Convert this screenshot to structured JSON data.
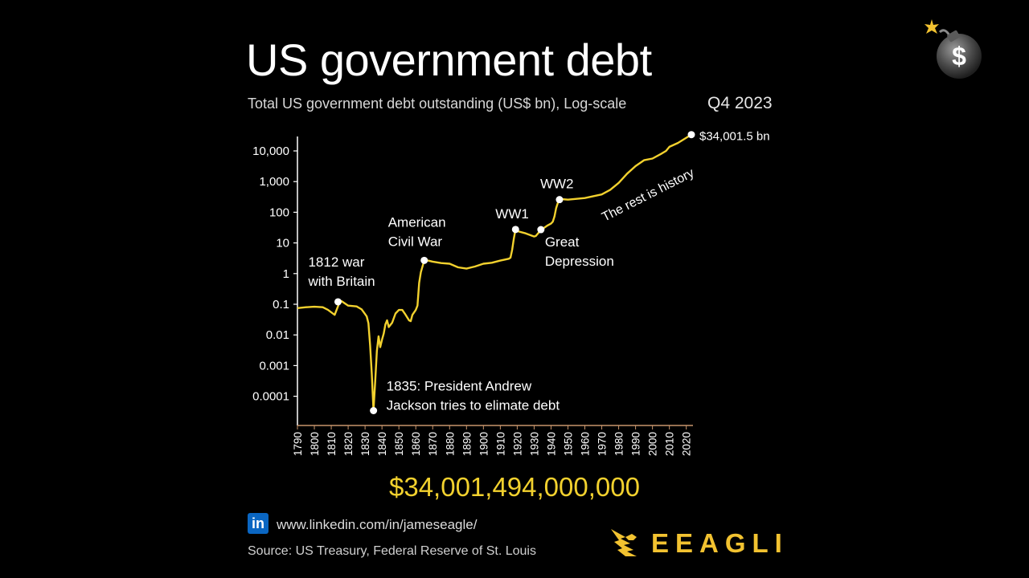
{
  "header": {
    "title": "US government debt",
    "subtitle": "Total US government debt outstanding (US$ bn), Log-scale",
    "period": "Q4 2023"
  },
  "total_display": "$34,001,494,000,000",
  "footer": {
    "linkedin_icon": "linkedin-icon",
    "linkedin_glyph": "in",
    "url": "www.linkedin.com/in/jameseagle/",
    "source": "Source: US Treasury, Federal Reserve of St. Louis",
    "brand": "EEAGLI"
  },
  "colors": {
    "background": "#000000",
    "line": "#f2d12e",
    "highlight_text": "#f2d12e",
    "brand": "#f2c230",
    "axis": "#ffffff",
    "x_axis": "#c8956c"
  },
  "chart_data": {
    "type": "line",
    "title": "US government debt",
    "subtitle": "Total US government debt outstanding (US$ bn), Log-scale",
    "xlabel": "",
    "ylabel": "",
    "y_scale": "log",
    "ylim": [
      0.0001,
      34001.5
    ],
    "xlim": [
      1790,
      2023
    ],
    "grid": false,
    "y_ticks": [
      {
        "value": 10000,
        "label": "10,000"
      },
      {
        "value": 1000,
        "label": "1,000"
      },
      {
        "value": 100,
        "label": "100"
      },
      {
        "value": 10,
        "label": "10"
      },
      {
        "value": 1,
        "label": "1"
      },
      {
        "value": 0.1,
        "label": "0.1"
      },
      {
        "value": 0.01,
        "label": "0.01"
      },
      {
        "value": 0.001,
        "label": "0.001"
      },
      {
        "value": 0.0001,
        "label": "0.0001"
      }
    ],
    "x_ticks": [
      "1790",
      "1800",
      "1810",
      "1820",
      "1830",
      "1840",
      "1850",
      "1860",
      "1870",
      "1880",
      "1890",
      "1900",
      "1910",
      "1920",
      "1930",
      "1940",
      "1950",
      "1960",
      "1970",
      "1980",
      "1990",
      "2000",
      "2010",
      "2020"
    ],
    "series": [
      {
        "x": [
          1790,
          1795,
          1800,
          1805,
          1808,
          1812,
          1815,
          1816,
          1820,
          1825,
          1828,
          1830,
          1831,
          1832,
          1833,
          1834,
          1835,
          1836,
          1837,
          1838,
          1839,
          1840,
          1841,
          1842,
          1843,
          1844,
          1846,
          1848,
          1850,
          1852,
          1854,
          1856,
          1857,
          1858,
          1860,
          1861,
          1862,
          1863,
          1865,
          1866,
          1868,
          1870,
          1875,
          1880,
          1885,
          1890,
          1893,
          1895,
          1900,
          1905,
          1910,
          1915,
          1916,
          1917,
          1918,
          1919,
          1920,
          1925,
          1930,
          1931,
          1932,
          1933,
          1934,
          1935,
          1938,
          1940,
          1941,
          1942,
          1943,
          1944,
          1945,
          1946,
          1950,
          1960,
          1970,
          1975,
          1980,
          1985,
          1990,
          1995,
          2000,
          2005,
          2008,
          2010,
          2015,
          2020,
          2023
        ],
        "values": [
          0.075,
          0.08,
          0.083,
          0.08,
          0.066,
          0.045,
          0.12,
          0.127,
          0.09,
          0.085,
          0.068,
          0.048,
          0.04,
          0.024,
          0.0045,
          0.00052,
          3.4e-05,
          0.0003,
          0.003,
          0.009,
          0.004,
          0.007,
          0.011,
          0.022,
          0.03,
          0.018,
          0.025,
          0.05,
          0.065,
          0.065,
          0.045,
          0.03,
          0.028,
          0.045,
          0.065,
          0.09,
          0.5,
          1.1,
          2.7,
          2.75,
          2.6,
          2.45,
          2.2,
          2.1,
          1.6,
          1.45,
          1.6,
          1.7,
          2.1,
          2.25,
          2.65,
          3.05,
          3.3,
          6.0,
          14.0,
          27.5,
          24.3,
          20.5,
          16.2,
          16.8,
          19.5,
          22.5,
          27.1,
          28.7,
          37.2,
          43.0,
          49.0,
          72.4,
          136.7,
          201.0,
          258.7,
          269.4,
          257.0,
          290.5,
          380.9,
          541.9,
          908.0,
          1817.4,
          3206.3,
          4974.0,
          5628.7,
          7932.7,
          10024.7,
          13561.6,
          18150.6,
          26945.4,
          34001.5
        ]
      }
    ],
    "annotations": [
      {
        "x": 1814,
        "y": 0.12,
        "label_line1": "1812 war",
        "label_line2": "with Britain"
      },
      {
        "x": 1835,
        "y": 3.4e-05,
        "label_line1": "1835: President Andrew",
        "label_line2": "Jackson tries to elimate debt"
      },
      {
        "x": 1865,
        "y": 2.7,
        "label_line1": "American",
        "label_line2": "Civil War"
      },
      {
        "x": 1919,
        "y": 27.5,
        "label_line1": "WW1",
        "label_line2": ""
      },
      {
        "x": 1934,
        "y": 27.1,
        "label_line1": "Great",
        "label_line2": "Depression"
      },
      {
        "x": 1945,
        "y": 258.7,
        "label_line1": "WW2",
        "label_line2": ""
      },
      {
        "x": 2023,
        "y": 34001.5,
        "label_line1": "$34,001.5 bn",
        "label_line2": ""
      }
    ],
    "annotation_rotated": "The rest is history"
  }
}
